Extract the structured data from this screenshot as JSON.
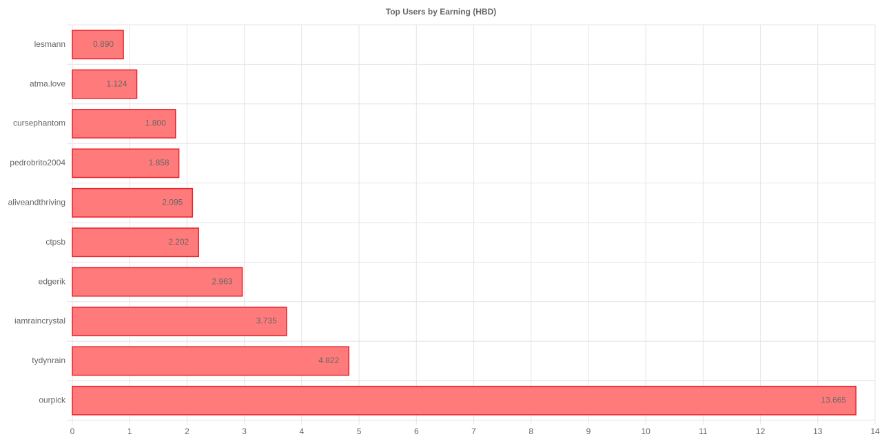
{
  "chart_data": {
    "type": "bar",
    "title": "Top Users by Earning (HBD)",
    "categories": [
      "lesmann",
      "atma.love",
      "cursephantom",
      "pedrobrito2004",
      "aliveandthriving",
      "ctpsb",
      "edgerik",
      "iamraincrystal",
      "tydynrain",
      "ourpick"
    ],
    "values": [
      0.89,
      1.124,
      1.8,
      1.858,
      2.095,
      2.202,
      2.963,
      3.735,
      4.822,
      13.665
    ],
    "value_labels": [
      "0.890",
      "1.124",
      "1.800",
      "1.858",
      "2.095",
      "2.202",
      "2.963",
      "3.735",
      "4.822",
      "13.665"
    ],
    "color": "#ff7b7b",
    "border_color": "#e8202a",
    "xlim": [
      0,
      14
    ],
    "xticks": [
      0,
      1,
      2,
      3,
      4,
      5,
      6,
      7,
      8,
      9,
      10,
      11,
      12,
      13,
      14
    ],
    "grid": true
  }
}
